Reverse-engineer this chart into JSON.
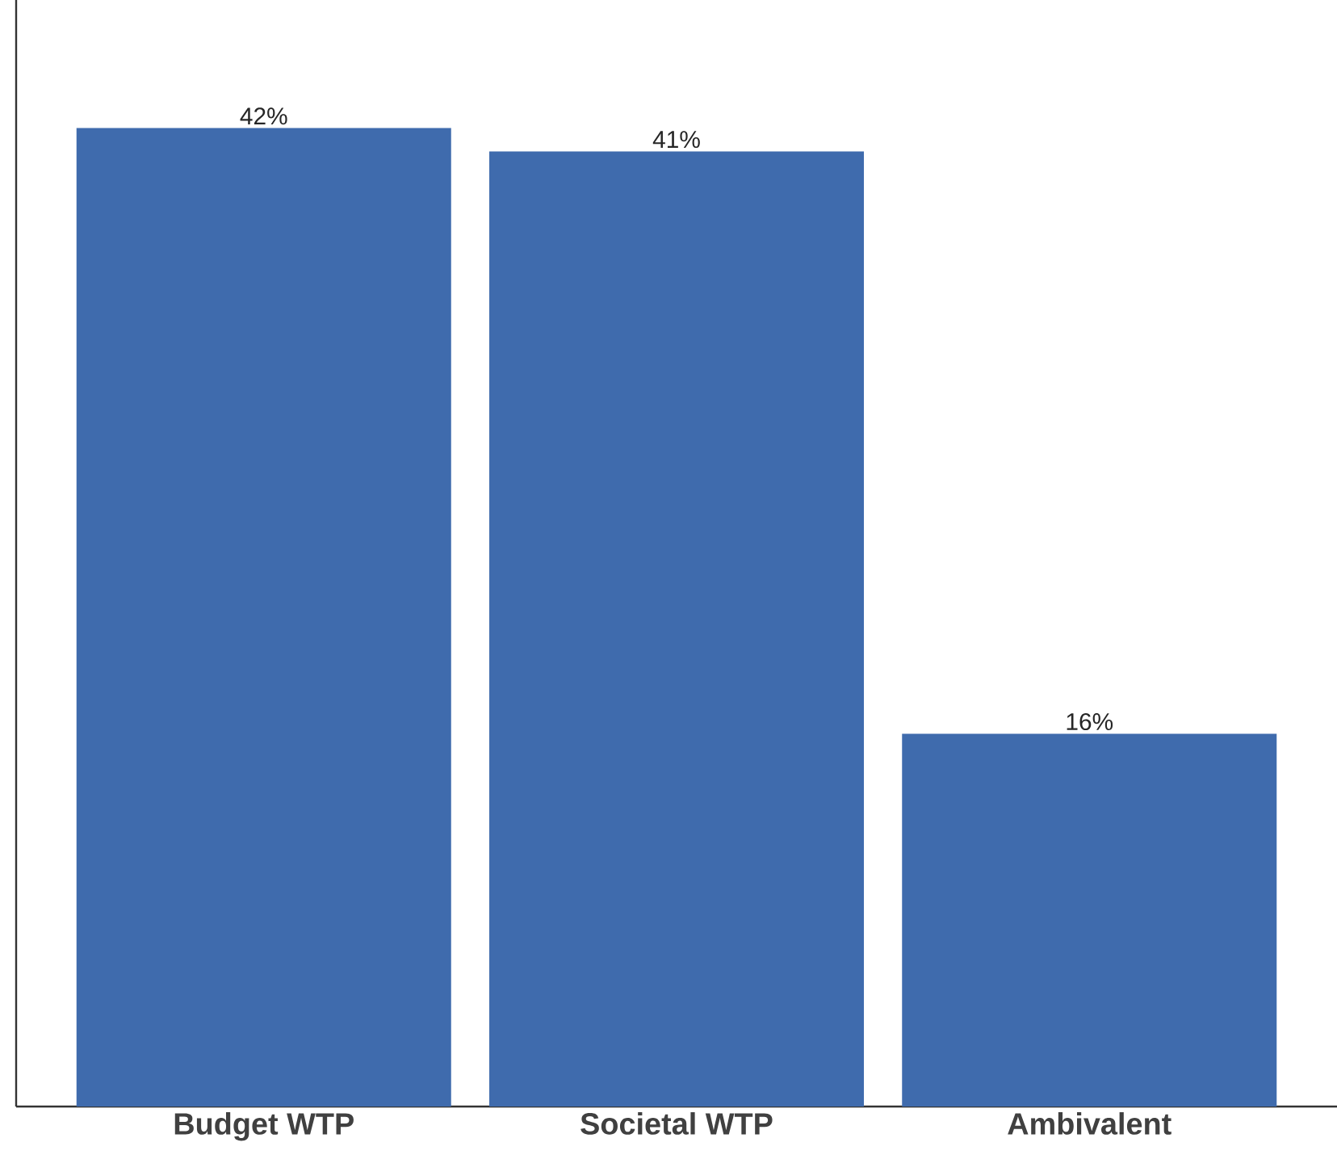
{
  "chart_data": {
    "type": "bar",
    "categories": [
      "Budget WTP",
      "Societal WTP",
      "Ambivalent"
    ],
    "values": [
      42,
      41,
      16
    ],
    "value_labels": [
      "42%",
      "41%",
      "16%"
    ],
    "color": "#3f6bad",
    "ylim": [
      0,
      47.5
    ],
    "tick_labels": "x"
  }
}
